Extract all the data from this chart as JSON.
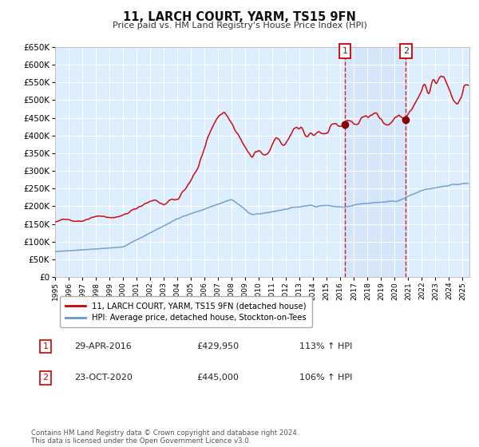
{
  "title": "11, LARCH COURT, YARM, TS15 9FN",
  "subtitle": "Price paid vs. HM Land Registry's House Price Index (HPI)",
  "legend_line1": "11, LARCH COURT, YARM, TS15 9FN (detached house)",
  "legend_line2": "HPI: Average price, detached house, Stockton-on-Tees",
  "label1_date": "29-APR-2016",
  "label1_price": "£429,950",
  "label1_hpi": "113% ↑ HPI",
  "label2_date": "23-OCT-2020",
  "label2_price": "£445,000",
  "label2_hpi": "106% ↑ HPI",
  "sale1_year": 2016.33,
  "sale1_price": 429950,
  "sale2_year": 2020.81,
  "sale2_price": 445000,
  "footer": "Contains HM Land Registry data © Crown copyright and database right 2024.\nThis data is licensed under the Open Government Licence v3.0.",
  "red_color": "#cc0000",
  "blue_color": "#6699cc",
  "bg_color": "#ddeeff",
  "ylim": [
    0,
    650000
  ],
  "yticks": [
    0,
    50000,
    100000,
    150000,
    200000,
    250000,
    300000,
    350000,
    400000,
    450000,
    500000,
    550000,
    600000,
    650000
  ],
  "xlim_start": 1995.0,
  "xlim_end": 2025.5
}
